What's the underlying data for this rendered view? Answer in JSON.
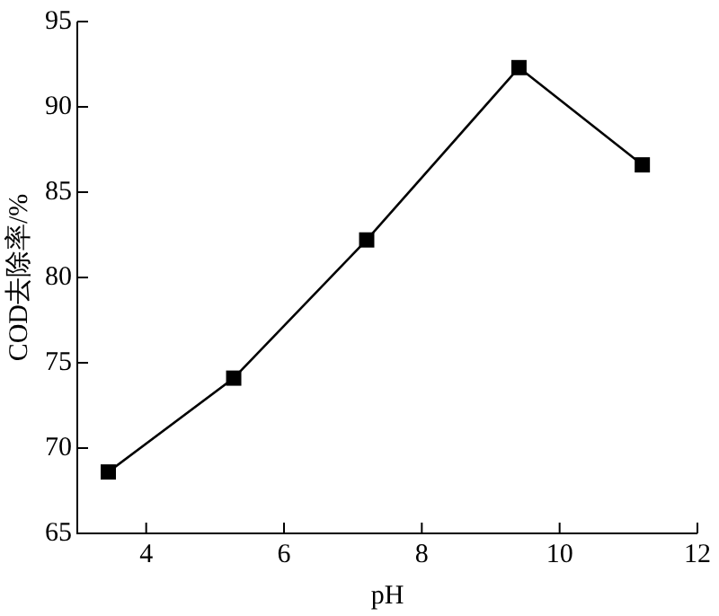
{
  "chart_data": {
    "type": "line",
    "xlabel": "pH",
    "ylabel": "COD去除率/%",
    "x": [
      3.45,
      5.27,
      7.2,
      9.41,
      11.2
    ],
    "series": [
      {
        "color": "#000000",
        "values": [
          68.6,
          74.1,
          82.2,
          92.3,
          86.6
        ]
      }
    ],
    "xlim": [
      3,
      12
    ],
    "xticks": [
      4,
      6,
      8,
      10,
      12
    ],
    "ylim": [
      65,
      95
    ],
    "yticks": [
      65,
      70,
      75,
      80,
      85,
      90,
      95
    ],
    "grid": false,
    "legend": false,
    "marker": "square",
    "line_style": "solid"
  }
}
